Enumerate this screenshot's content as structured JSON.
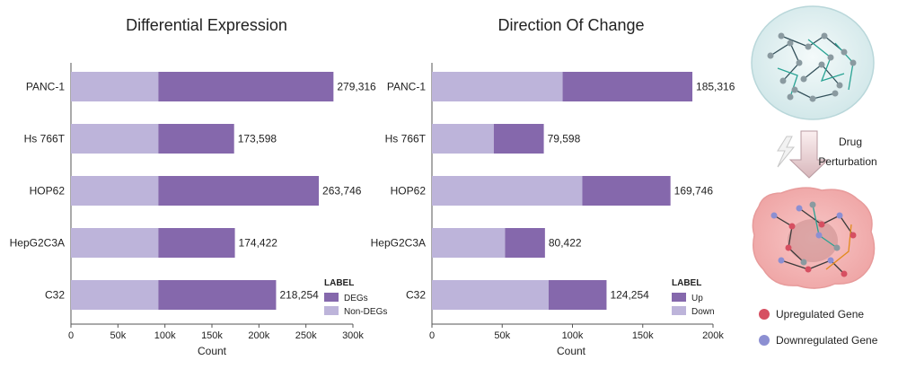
{
  "chart_data": [
    {
      "type": "bar",
      "stacked": true,
      "orientation": "horizontal",
      "title": "Differential Expression",
      "xlabel": "Count",
      "ylabel": "",
      "xlim": [
        0,
        300000
      ],
      "x_ticks": [
        "0",
        "50k",
        "100k",
        "150k",
        "200k",
        "250k",
        "300k"
      ],
      "grid": false,
      "legend": {
        "title": "LABEL",
        "position": "bottom-right"
      },
      "categories": [
        "PANC-1",
        "Hs 766T",
        "HOP62",
        "HepG2C3A",
        "C32"
      ],
      "series": [
        {
          "name": "Non-DEGs",
          "color": "#bdb4da",
          "values": [
            93000,
            93000,
            93000,
            93000,
            93000
          ]
        },
        {
          "name": "DEGs",
          "color": "#8568ac",
          "values": [
            186316,
            80598,
            170746,
            81422,
            125254
          ]
        }
      ],
      "total_labels": [
        "279,316",
        "173,598",
        "263,746",
        "174,422",
        "218,254"
      ]
    },
    {
      "type": "bar",
      "stacked": true,
      "orientation": "horizontal",
      "title": "Direction Of Change",
      "xlabel": "Count",
      "ylabel": "",
      "xlim": [
        0,
        200000
      ],
      "x_ticks": [
        "0",
        "50k",
        "100k",
        "150k",
        "200k"
      ],
      "grid": false,
      "legend": {
        "title": "LABEL",
        "position": "bottom-right"
      },
      "categories": [
        "PANC-1",
        "Hs 766T",
        "HOP62",
        "HepG2C3A",
        "C32"
      ],
      "series": [
        {
          "name": "Down",
          "color": "#bdb4da",
          "values": [
            93000,
            44000,
            107000,
            52000,
            83000
          ]
        },
        {
          "name": "Up",
          "color": "#8568ac",
          "values": [
            92316,
            35598,
            62746,
            28422,
            41254
          ]
        }
      ],
      "total_labels": [
        "185,316",
        "79,598",
        "169,746",
        "80,422",
        "124,254"
      ]
    }
  ],
  "illustration": {
    "arrow_label_line1": "Drug",
    "arrow_label_line2": "Perturbation",
    "legend": [
      {
        "label": "Upregulated Gene",
        "color": "#d64f61"
      },
      {
        "label": "Downregulated Gene",
        "color": "#8c8fd2"
      }
    ]
  }
}
